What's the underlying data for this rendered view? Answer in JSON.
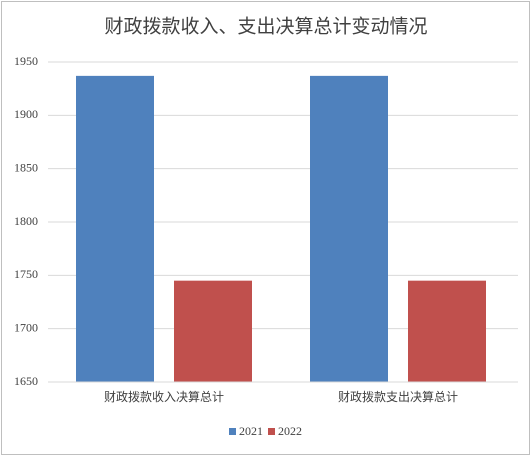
{
  "chart_data": {
    "type": "bar",
    "title": "财政拨款收入、支出决算总计变动情况",
    "categories": [
      "财政拨款收入决算总计",
      "财政拨款支出决算总计"
    ],
    "series": [
      {
        "name": "2021",
        "color": "#4f81bd",
        "values": [
          1937,
          1937
        ]
      },
      {
        "name": "2022",
        "color": "#c0504d",
        "values": [
          1745,
          1745
        ]
      }
    ],
    "ylim": [
      1650,
      1950
    ],
    "yticks": [
      1650,
      1700,
      1750,
      1800,
      1850,
      1900,
      1950
    ],
    "grid": true,
    "legend": "bottom"
  }
}
